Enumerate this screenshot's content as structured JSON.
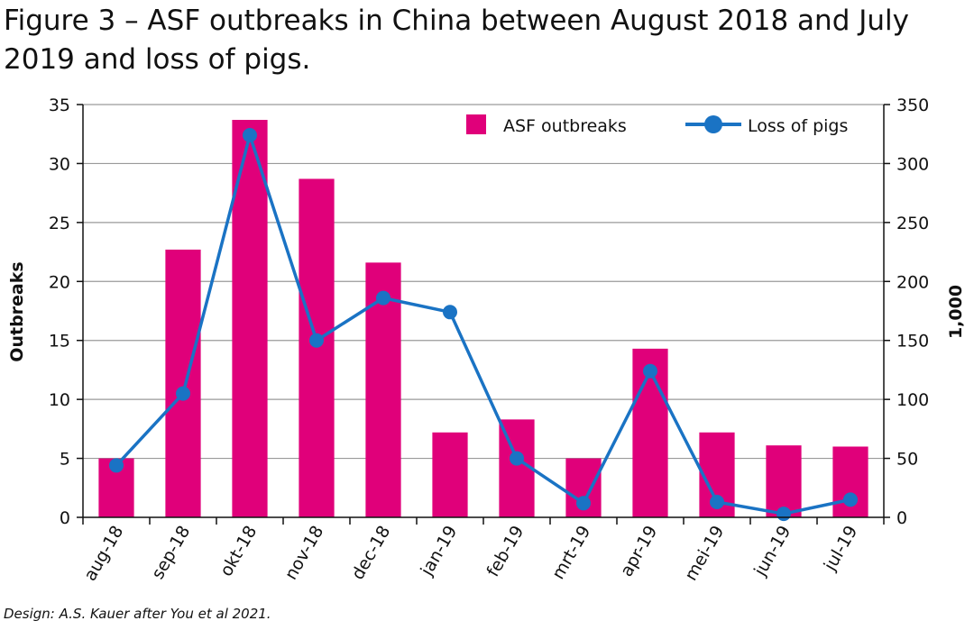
{
  "title": "Figure 3 – ASF outbreaks in China between August 2018 and July 2019 and loss of pigs.",
  "credit": "Design: A.S. Kauer after You et al 2021.",
  "colors": {
    "bar": "#e0007a",
    "line": "#1a73c4",
    "grid": "#9a9a9a",
    "axis": "#111111"
  },
  "chart_data": {
    "type": "bar",
    "categories": [
      "aug-18",
      "sep-18",
      "okt-18",
      "nov-18",
      "dec-18",
      "jan-19",
      "feb-19",
      "mrt-19",
      "apr-19",
      "mei-19",
      "jun-19",
      "jul-19"
    ],
    "series": [
      {
        "name": "ASF outbreaks",
        "type": "bar",
        "axis": "left",
        "values": [
          5,
          22.7,
          33.7,
          28.7,
          21.6,
          7.2,
          8.3,
          5,
          14.3,
          7.2,
          6.1,
          6
        ]
      },
      {
        "name": "Loss of pigs",
        "type": "line",
        "axis": "right",
        "values": [
          44,
          105,
          324,
          150,
          186,
          174,
          50,
          12,
          124,
          13,
          3,
          15
        ]
      }
    ],
    "ylabel": "Outbreaks",
    "y2label": "1,000",
    "ylim": [
      0,
      35
    ],
    "y2lim": [
      0,
      350
    ],
    "yticks": [
      "0",
      "5",
      "10",
      "15",
      "20",
      "25",
      "30",
      "35"
    ],
    "y2ticks": [
      "0",
      "50",
      "100",
      "150",
      "200",
      "250",
      "300",
      "350"
    ],
    "grid": true,
    "legend_position": "top-right"
  }
}
